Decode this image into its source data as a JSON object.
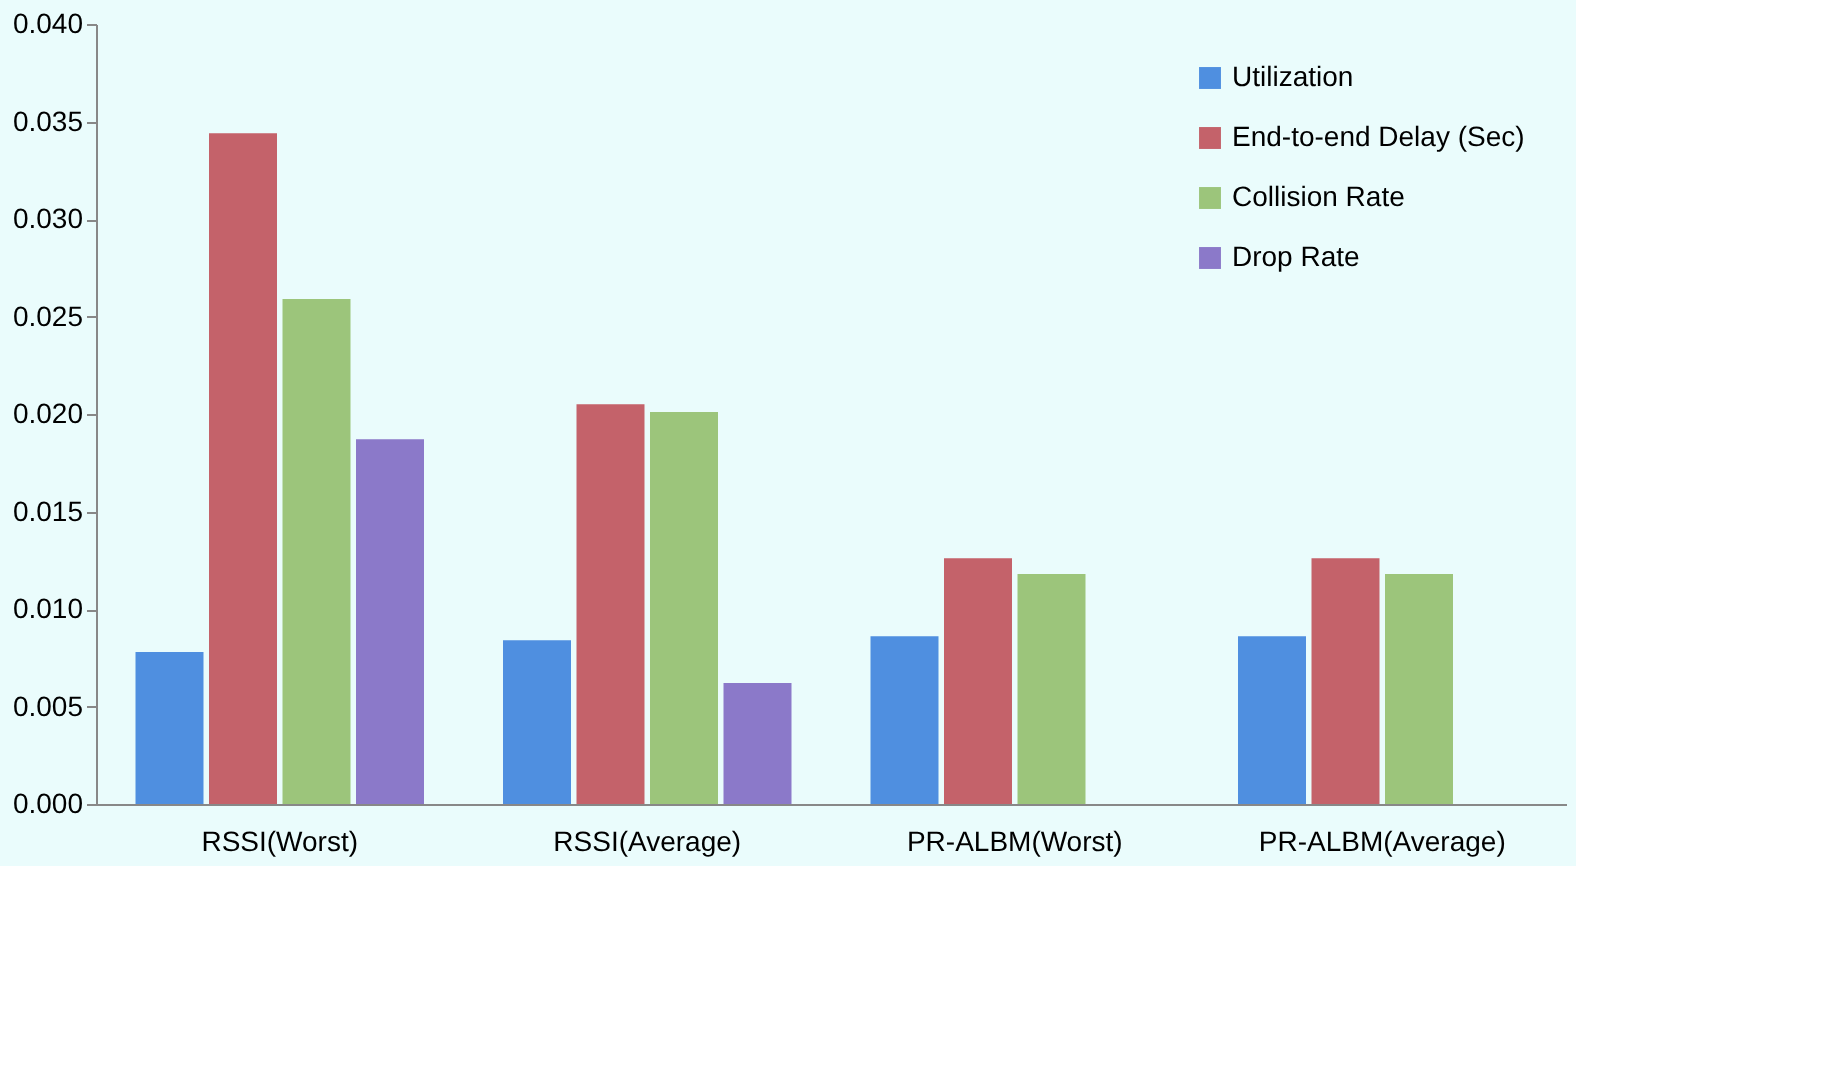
{
  "chart_data": {
    "type": "bar",
    "categories": [
      "RSSI(Worst)",
      "RSSI(Average)",
      "PR-ALBM(Worst)",
      "PR-ALBM(Average)"
    ],
    "series": [
      {
        "name": "Utilization",
        "color": "#4f8fe0",
        "values": [
          0.0078,
          0.0084,
          0.0086,
          0.0086
        ]
      },
      {
        "name": "End-to-end Delay (Sec)",
        "color": "#c4626a",
        "values": [
          0.0344,
          0.0205,
          0.0126,
          0.0126
        ]
      },
      {
        "name": "Collision Rate",
        "color": "#9cc57b",
        "values": [
          0.0259,
          0.0201,
          0.0118,
          0.0118
        ]
      },
      {
        "name": "Drop Rate",
        "color": "#8b79c9",
        "values": [
          0.0187,
          0.0062,
          null,
          null
        ]
      }
    ],
    "ylim": [
      0,
      0.04
    ],
    "yticks": [
      {
        "value": 0,
        "label": "0.000"
      },
      {
        "value": 0.005,
        "label": "0.005"
      },
      {
        "value": 0.01,
        "label": "0.010"
      },
      {
        "value": 0.015,
        "label": "0.015"
      },
      {
        "value": 0.02,
        "label": "0.020"
      },
      {
        "value": 0.025,
        "label": "0.025"
      },
      {
        "value": 0.03,
        "label": "0.030"
      },
      {
        "value": 0.035,
        "label": "0.035"
      },
      {
        "value": 0.04,
        "label": "0.040"
      }
    ],
    "grid": false,
    "legend": "top right"
  }
}
